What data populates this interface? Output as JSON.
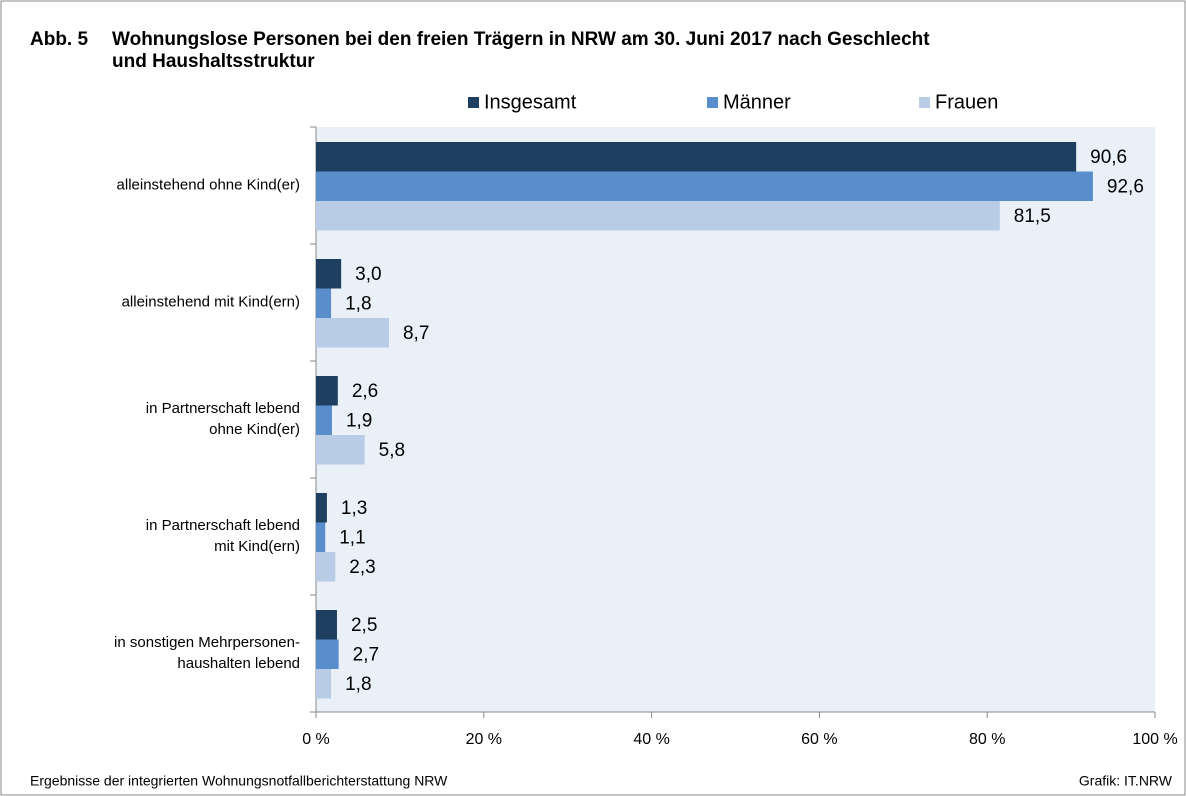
{
  "chart_data": {
    "type": "bar",
    "orientation": "horizontal",
    "figure_label": "Abb. 5",
    "title": [
      "Wohnungslose Personen bei den freien Trägern in NRW am 30. Juni 2017 nach Geschlecht",
      "und Haushaltsstruktur"
    ],
    "categories": [
      [
        "alleinstehend ohne Kind(er)"
      ],
      [
        "alleinstehend mit Kind(ern)"
      ],
      [
        "in Partnerschaft lebend",
        "ohne Kind(er)"
      ],
      [
        "in Partnerschaft lebend",
        "mit Kind(ern)"
      ],
      [
        "in sonstigen Mehrpersonen-",
        "haushalten lebend"
      ]
    ],
    "series": [
      {
        "name": "Insgesamt",
        "color": "#1f3f60",
        "values": [
          90.6,
          3.0,
          2.6,
          1.3,
          2.5
        ],
        "value_labels": [
          "90,6",
          "3,0",
          "2,6",
          "1,3",
          "2,5"
        ]
      },
      {
        "name": "Männer",
        "color": "#5a8dcc",
        "values": [
          92.6,
          1.8,
          1.9,
          1.1,
          2.7
        ],
        "value_labels": [
          "92,6",
          "1,8",
          "1,9",
          "1,1",
          "2,7"
        ]
      },
      {
        "name": "Frauen",
        "color": "#b9cce6",
        "values": [
          81.5,
          8.7,
          5.8,
          2.3,
          1.8
        ],
        "value_labels": [
          "81,5",
          "8,7",
          "5,8",
          "2,3",
          "1,8"
        ]
      }
    ],
    "xlim": [
      0,
      100
    ],
    "xticks": [
      {
        "value": 0,
        "label": "0 %"
      },
      {
        "value": 20,
        "label": "20 %"
      },
      {
        "value": 40,
        "label": "40 %"
      },
      {
        "value": 60,
        "label": "60 %"
      },
      {
        "value": 80,
        "label": "80 %"
      },
      {
        "value": 100,
        "label": "100 %"
      }
    ],
    "legend": "top",
    "source": "Ergebnisse der integrierten Wohnungsnotfallberichterstattung NRW",
    "credit": "Grafik: IT.NRW"
  }
}
